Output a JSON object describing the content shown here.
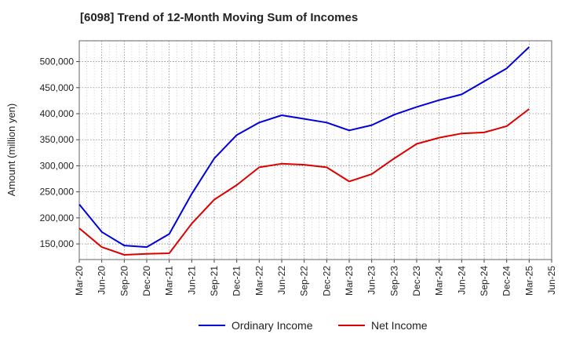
{
  "chart_data": {
    "type": "line",
    "title": "[6098]  Trend of 12-Month Moving Sum of Incomes",
    "xlabel": "",
    "ylabel": "Amount (million yen)",
    "ylim": [
      120000,
      540000
    ],
    "yticks": [
      150000,
      200000,
      250000,
      300000,
      350000,
      400000,
      450000,
      500000
    ],
    "ytick_labels": [
      "150,000",
      "200,000",
      "250,000",
      "300,000",
      "350,000",
      "400,000",
      "450,000",
      "500,000"
    ],
    "categories": [
      "Mar-20",
      "Jun-20",
      "Sep-20",
      "Dec-20",
      "Mar-21",
      "Jun-21",
      "Sep-21",
      "Dec-21",
      "Mar-22",
      "Jun-22",
      "Sep-22",
      "Dec-22",
      "Mar-23",
      "Jun-23",
      "Sep-23",
      "Dec-23",
      "Mar-24",
      "Jun-24",
      "Sep-24",
      "Dec-24",
      "Mar-25",
      "Jun-25"
    ],
    "grid": true,
    "legend_position": "bottom",
    "series": [
      {
        "name": "Ordinary Income",
        "color": "#0000dd",
        "values": [
          226000,
          173000,
          147000,
          144000,
          169000,
          246000,
          314000,
          359000,
          383000,
          397000,
          390000,
          383000,
          368000,
          378000,
          398000,
          413000,
          426000,
          437000,
          462000,
          487000,
          528000,
          null
        ]
      },
      {
        "name": "Net Income",
        "color": "#dd0000",
        "values": [
          180000,
          144000,
          129000,
          131000,
          132000,
          189000,
          235000,
          263000,
          297000,
          304000,
          302000,
          297000,
          270000,
          284000,
          314000,
          342000,
          354000,
          362000,
          364000,
          376000,
          409000,
          null
        ]
      }
    ]
  }
}
